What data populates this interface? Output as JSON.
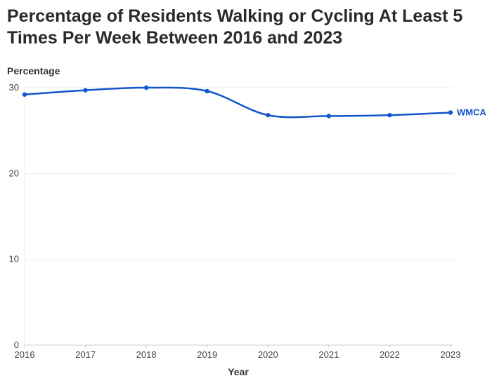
{
  "chart_data": {
    "type": "line",
    "title": "Percentage of Residents Walking or Cycling At Least 5 Times Per Week Between 2016 and 2023",
    "ylabel": "Percentage",
    "xlabel": "Year",
    "x": [
      "2016",
      "2017",
      "2018",
      "2019",
      "2020",
      "2021",
      "2022",
      "2023"
    ],
    "ylim": [
      0,
      30
    ],
    "yticks": [
      0,
      10,
      20,
      30
    ],
    "grid": true,
    "series": [
      {
        "name": "WMCA",
        "color": "#1155cc",
        "values": [
          29.2,
          29.7,
          30.0,
          29.6,
          26.8,
          26.7,
          26.8,
          27.1
        ]
      }
    ]
  }
}
